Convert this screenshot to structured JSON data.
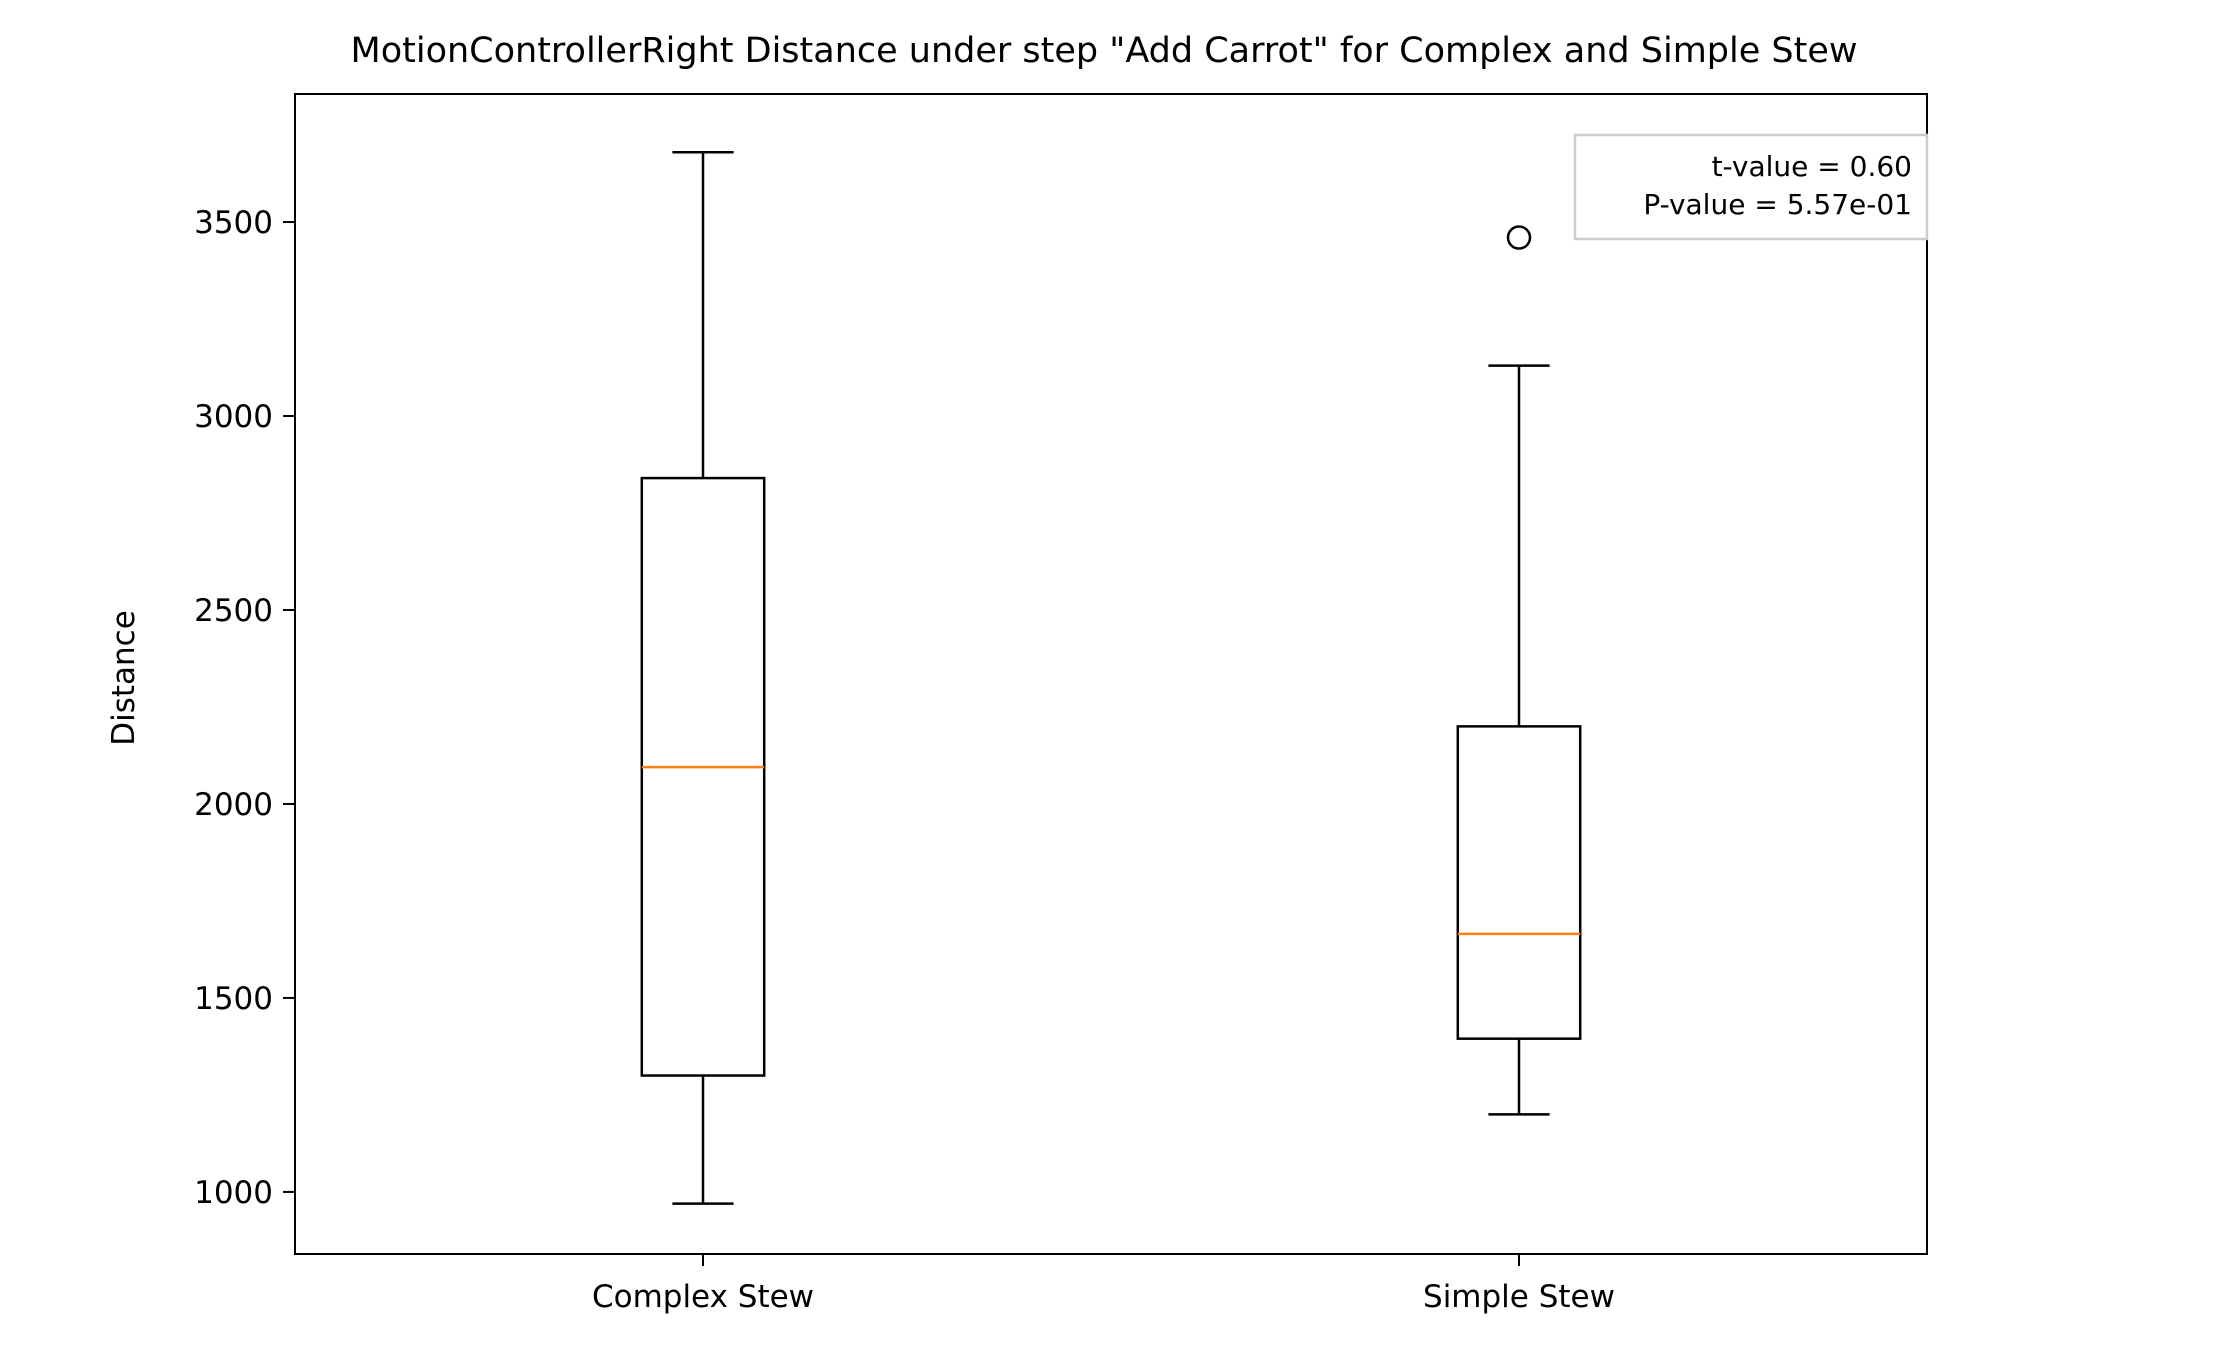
{
  "chart_data": {
    "type": "box",
    "title": "MotionControllerRight Distance under step \"Add Carrot\" for Complex and Simple Stew",
    "xlabel": "",
    "ylabel": "Distance",
    "ylim": [
      840,
      3830
    ],
    "yticks": [
      1000,
      1500,
      2000,
      2500,
      3000,
      3500
    ],
    "ytick_labels": [
      "1000",
      "1500",
      "2000",
      "2500",
      "3000",
      "3500"
    ],
    "categories": [
      "Complex Stew",
      "Simple Stew"
    ],
    "boxes": [
      {
        "category": "Complex Stew",
        "whisker_low": 970,
        "q1": 1300,
        "median": 2095,
        "q3": 2840,
        "whisker_high": 3680,
        "outliers": []
      },
      {
        "category": "Simple Stew",
        "whisker_low": 1200,
        "q1": 1395,
        "median": 1665,
        "q3": 2200,
        "whisker_high": 3130,
        "outliers": [
          3460
        ]
      }
    ],
    "annotation": {
      "lines": [
        "t-value = 0.60",
        "P-value = 5.57e-01"
      ],
      "placement": "top-right"
    },
    "colors": {
      "box": "#000000",
      "median": "#ff7f0e",
      "frame": "#000000",
      "annotation_border": "#cccccc"
    },
    "grid": false
  }
}
